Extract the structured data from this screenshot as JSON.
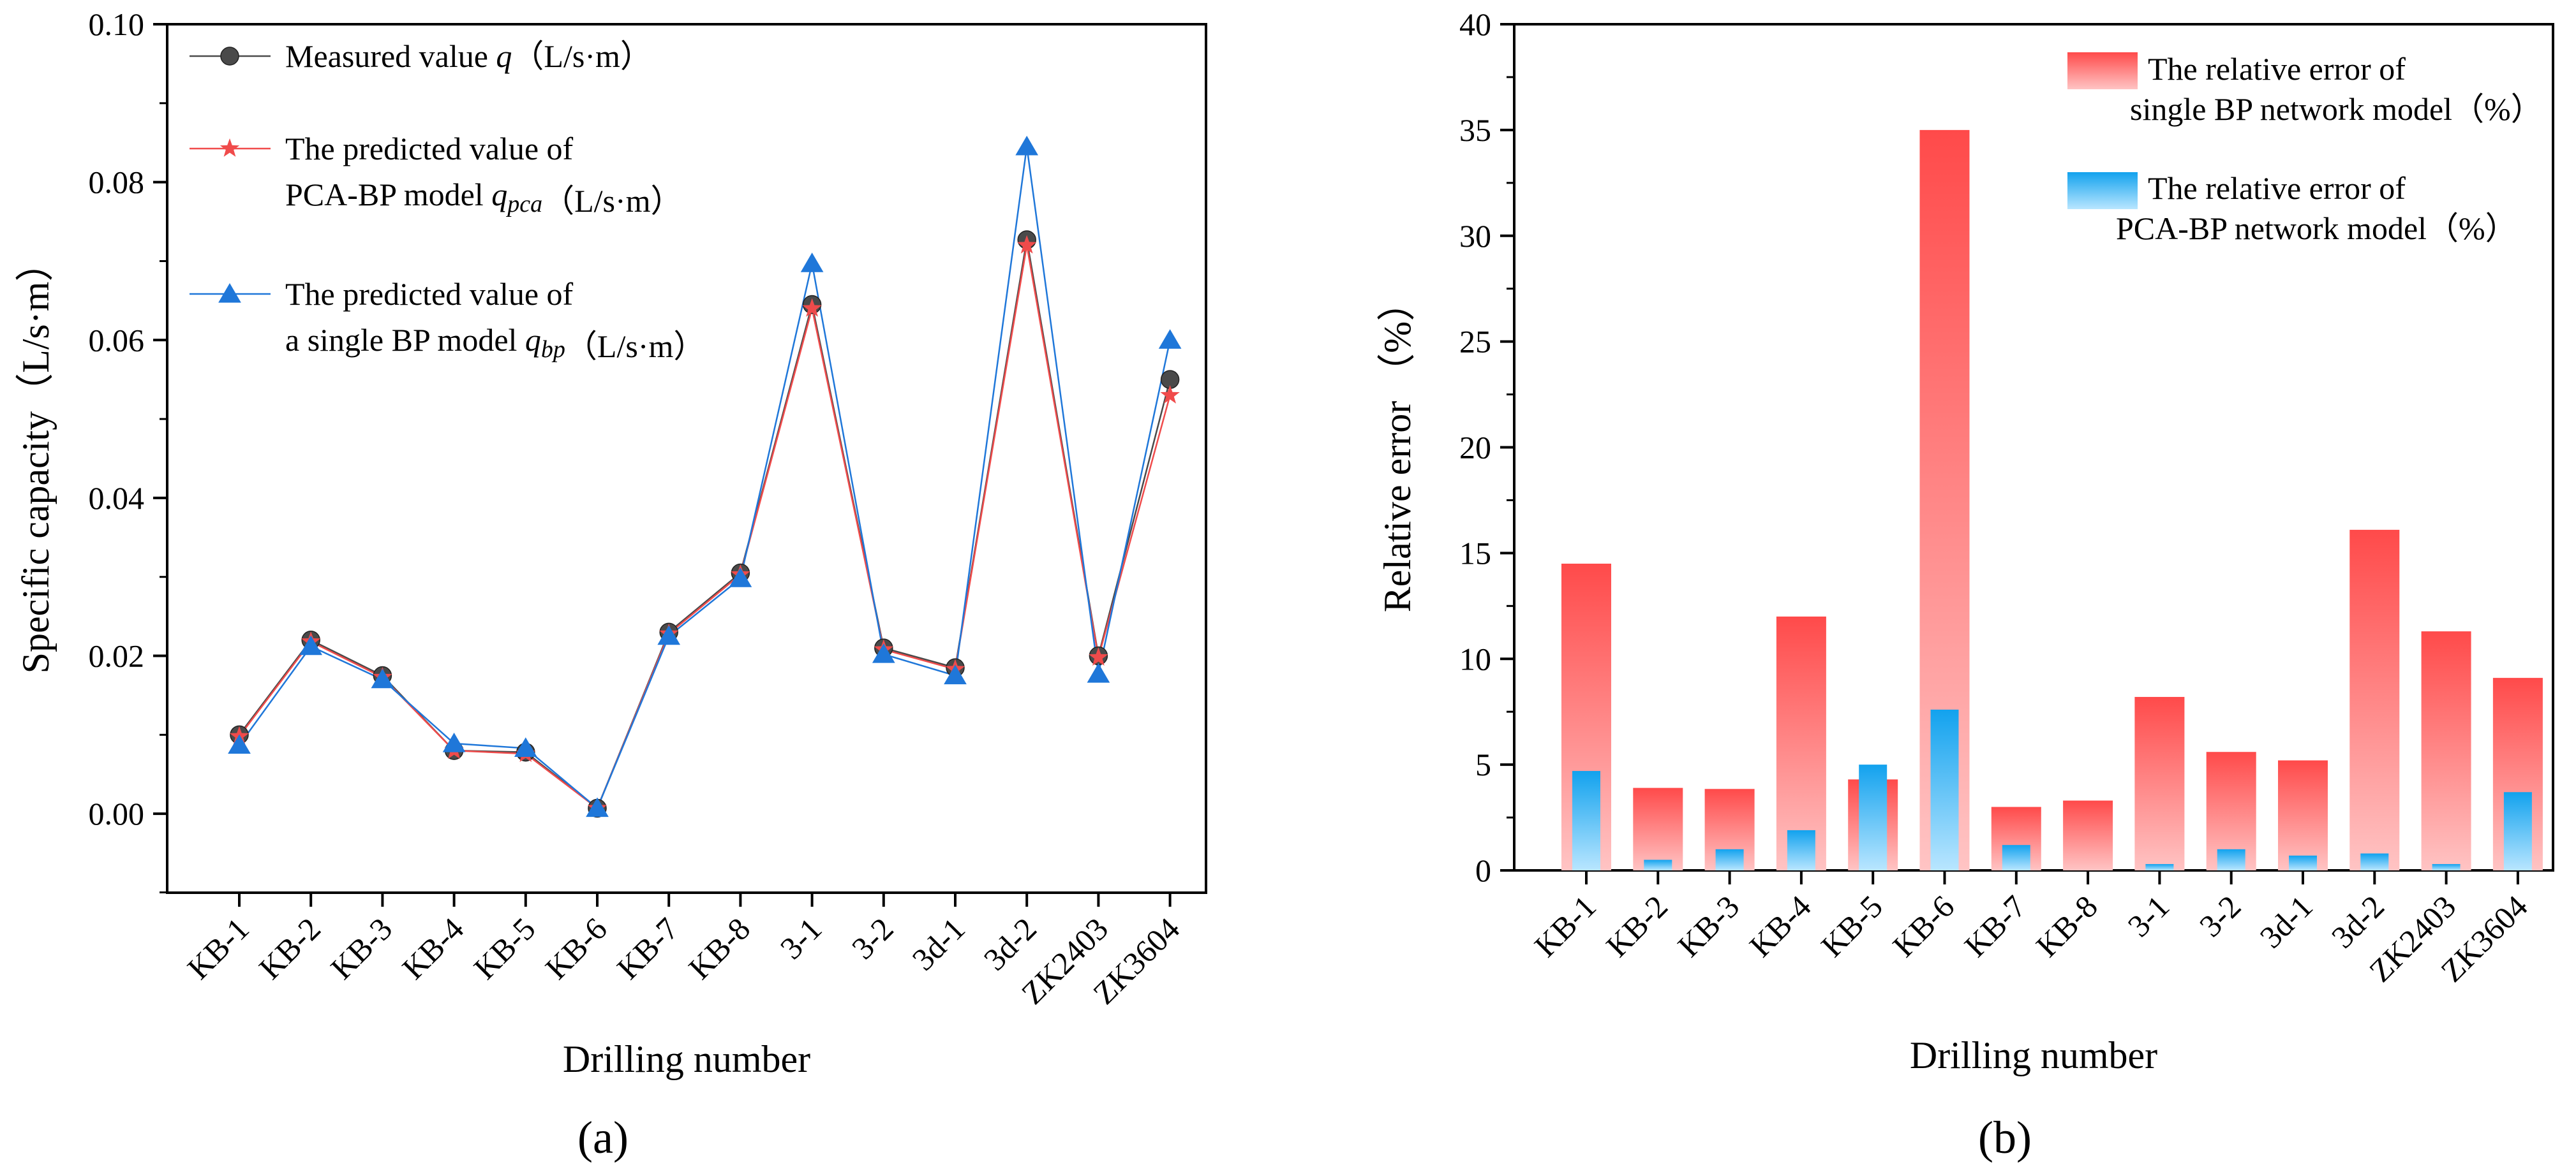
{
  "chart_data": [
    {
      "type": "line",
      "panel_label": "(a)",
      "xlabel": "Drilling number",
      "ylabel": "Specific capacity（L/s·m）",
      "ylim": [
        -0.01,
        0.1
      ],
      "yticks": [
        "0.00",
        "0.02",
        "0.04",
        "0.06",
        "0.08",
        "0.10"
      ],
      "categories": [
        "KB-1",
        "KB-2",
        "KB-3",
        "KB-4",
        "KB-5",
        "KB-6",
        "KB-7",
        "KB-8",
        "3-1",
        "3-2",
        "3d-1",
        "3d-2",
        "ZK2403",
        "ZK3604"
      ],
      "legend_position": "top-left",
      "series": [
        {
          "name": "Measured value q（L/s·m）",
          "legend_lines": [
            {
              "parts": [
                {
                  "t": "Measured value "
                },
                {
                  "t": "q",
                  "italic": true
                },
                {
                  "t": "（L/s·m）"
                }
              ]
            }
          ],
          "marker": "circle",
          "color": "#4a4a4a",
          "values": [
            0.01,
            0.022,
            0.0175,
            0.008,
            0.0078,
            0.0007,
            0.023,
            0.0305,
            0.0645,
            0.021,
            0.0185,
            0.0727,
            0.02,
            0.055
          ]
        },
        {
          "name": "The predicted value of PCA-BP model q_pca（L/s·m）",
          "legend_lines": [
            {
              "parts": [
                {
                  "t": "The predicted value of"
                }
              ]
            },
            {
              "parts": [
                {
                  "t": "PCA-BP model "
                },
                {
                  "t": "q",
                  "italic": true
                },
                {
                  "t": "pca",
                  "italic": true,
                  "sub": true
                },
                {
                  "t": "（L/s·m）"
                }
              ]
            }
          ],
          "marker": "star",
          "color": "#f04b4b",
          "values": [
            0.0098,
            0.0218,
            0.0173,
            0.008,
            0.0076,
            0.0007,
            0.0228,
            0.0303,
            0.064,
            0.0208,
            0.0183,
            0.072,
            0.0198,
            0.053
          ]
        },
        {
          "name": "The predicted value of a single BP model q_bp（L/s·m）",
          "legend_lines": [
            {
              "parts": [
                {
                  "t": "The predicted value of"
                }
              ]
            },
            {
              "parts": [
                {
                  "t": "a single BP model "
                },
                {
                  "t": "q",
                  "italic": true
                },
                {
                  "t": "bp",
                  "italic": true,
                  "sub": true
                },
                {
                  "t": "（L/s·m）"
                }
              ]
            }
          ],
          "marker": "triangle",
          "color": "#1f77d9",
          "values": [
            0.0087,
            0.0212,
            0.017,
            0.0089,
            0.0083,
            0.0007,
            0.0225,
            0.0298,
            0.0697,
            0.0202,
            0.0175,
            0.0845,
            0.0177,
            0.06
          ]
        }
      ]
    },
    {
      "type": "bar",
      "panel_label": "(b)",
      "xlabel": "Drilling number",
      "ylabel": "Relative error （%）",
      "ylim": [
        0,
        40
      ],
      "yticks": [
        "0",
        "5",
        "10",
        "15",
        "20",
        "25",
        "30",
        "35",
        "40"
      ],
      "categories": [
        "KB-1",
        "KB-2",
        "KB-3",
        "KB-4",
        "KB-5",
        "KB-6",
        "KB-7",
        "KB-8",
        "3-1",
        "3-2",
        "3d-1",
        "3d-2",
        "ZK2403",
        "ZK3604"
      ],
      "legend_position": "top-right",
      "series": [
        {
          "name": "The relative error of single BP network model（%）",
          "legend_lines": [
            "The relative error of",
            "single BP network model（%）"
          ],
          "color_top": "#ff4a4a",
          "color_bottom": "#ffc4c4",
          "values": [
            14.5,
            3.9,
            3.85,
            12.0,
            4.3,
            35.0,
            3.0,
            3.3,
            8.2,
            5.6,
            5.2,
            16.1,
            11.3,
            9.1
          ]
        },
        {
          "name": "The relative error of PCA-BP network model（%）",
          "legend_lines": [
            "The relative error of",
            "PCA-BP network model（%）"
          ],
          "color_top": "#12a2ee",
          "color_bottom": "#b9e6ff",
          "values": [
            4.7,
            0.5,
            1.0,
            1.9,
            5.0,
            7.6,
            1.2,
            0.0,
            0.3,
            1.0,
            0.7,
            0.8,
            0.3,
            3.7
          ]
        }
      ]
    }
  ]
}
